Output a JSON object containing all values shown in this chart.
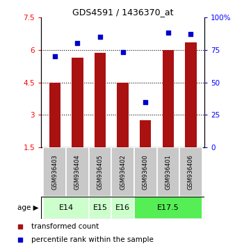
{
  "title": "GDS4591 / 1436370_at",
  "samples": [
    "GSM936403",
    "GSM936404",
    "GSM936405",
    "GSM936402",
    "GSM936400",
    "GSM936401",
    "GSM936406"
  ],
  "bar_values": [
    4.5,
    5.65,
    5.85,
    4.5,
    2.75,
    6.0,
    6.35
  ],
  "dot_values_pct": [
    70,
    80,
    85,
    73,
    35,
    88,
    87
  ],
  "age_groups": [
    {
      "label": "E14",
      "span": [
        0,
        1
      ]
    },
    {
      "label": "E15",
      "span": [
        2,
        2
      ]
    },
    {
      "label": "E16",
      "span": [
        3,
        3
      ]
    },
    {
      "label": "E17.5",
      "span": [
        4,
        6
      ]
    }
  ],
  "age_group_colors": [
    "#ccffcc",
    "#ccffcc",
    "#ccffcc",
    "#55ee55"
  ],
  "ylim_left": [
    1.5,
    7.5
  ],
  "ylim_right": [
    0,
    100
  ],
  "yticks_left": [
    1.5,
    3.0,
    4.5,
    6.0,
    7.5
  ],
  "yticks_right": [
    0,
    25,
    50,
    75,
    100
  ],
  "ytick_labels_left": [
    "1.5",
    "3",
    "4.5",
    "6",
    "7.5"
  ],
  "ytick_labels_right": [
    "0",
    "25",
    "50",
    "75",
    "100%"
  ],
  "bar_color": "#aa1111",
  "dot_color": "#0000cc",
  "bar_width": 0.5,
  "legend_bar_label": "transformed count",
  "legend_dot_label": "percentile rank within the sample",
  "sample_row_color": "#c8c8c8",
  "gridlines_at": [
    3.0,
    4.5,
    6.0
  ]
}
